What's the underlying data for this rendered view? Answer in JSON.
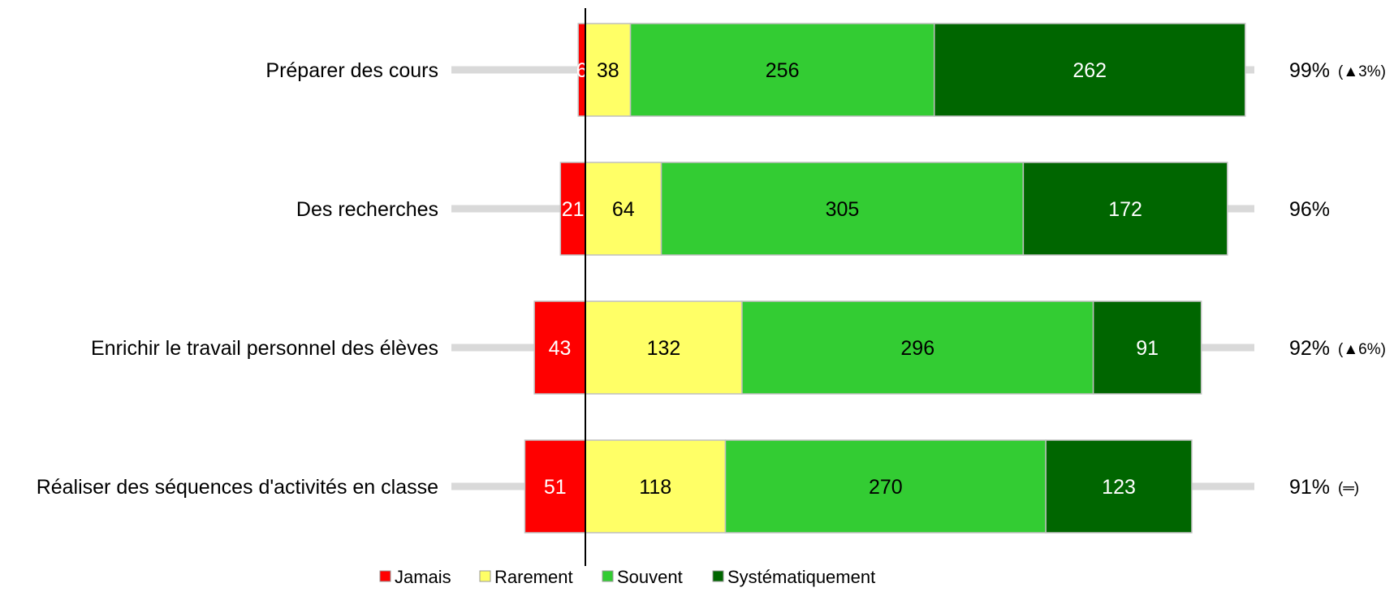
{
  "chart_data": {
    "type": "bar",
    "orientation": "horizontal",
    "stacked": "diverging",
    "categories": [
      "Préparer des cours",
      "Des recherches",
      "Enrichir le travail personnel des élèves",
      "Réaliser des séquences d'activités en classe"
    ],
    "series": [
      {
        "name": "Jamais",
        "values": [
          6,
          21,
          43,
          51
        ],
        "color": "#ff0000",
        "label_color": "#ffffff"
      },
      {
        "name": "Rarement",
        "values": [
          38,
          64,
          132,
          118
        ],
        "color": "#ffff66",
        "label_color": "#000000"
      },
      {
        "name": "Souvent",
        "values": [
          256,
          305,
          296,
          270
        ],
        "color": "#33cc33",
        "label_color": "#000000"
      },
      {
        "name": "Systématiquement",
        "values": [
          262,
          172,
          91,
          123
        ],
        "color": "#006600",
        "label_color": "#ffffff"
      }
    ],
    "percentages": [
      "99%",
      "96%",
      "92%",
      "91%"
    ],
    "trends": [
      "(▲3%)",
      "",
      "(▲6%)",
      "(═)"
    ],
    "baseline_color": "#000000",
    "track_color": "#d9d9d9",
    "legend_position": "bottom",
    "grid": false
  }
}
